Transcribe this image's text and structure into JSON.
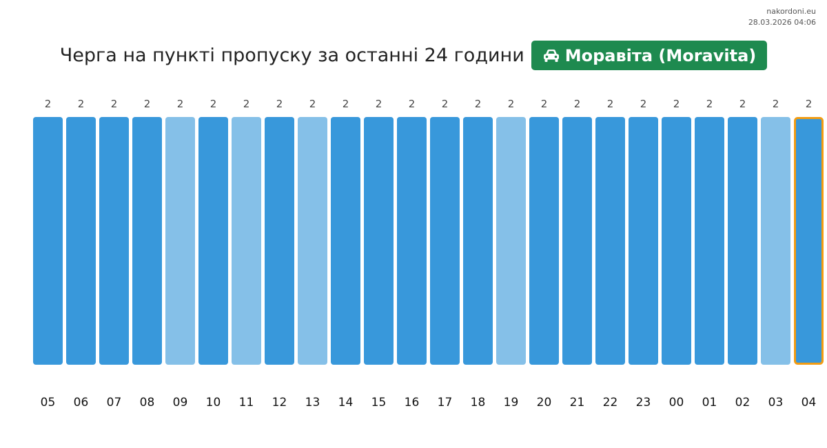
{
  "site": {
    "name": "nakordoni.eu",
    "timestamp": "28.03.2026 04:06"
  },
  "header": {
    "title": "Черга на пункті пропуску за останні 24 години",
    "checkpoint": "Моравіта (Moravita)",
    "icon": "car-icon"
  },
  "colors": {
    "bar": "#3898db",
    "bar_light": "#85c0e8",
    "highlight_border": "#f39c12",
    "badge": "#1e8a4f"
  },
  "chart_data": {
    "type": "bar",
    "categories": [
      "05",
      "06",
      "07",
      "08",
      "09",
      "10",
      "11",
      "12",
      "13",
      "14",
      "15",
      "16",
      "17",
      "18",
      "19",
      "20",
      "21",
      "22",
      "23",
      "00",
      "01",
      "02",
      "03",
      "04"
    ],
    "values": [
      2,
      2,
      2,
      2,
      2,
      2,
      2,
      2,
      2,
      2,
      2,
      2,
      2,
      2,
      2,
      2,
      2,
      2,
      2,
      2,
      2,
      2,
      2,
      2
    ],
    "light": [
      false,
      false,
      false,
      false,
      true,
      false,
      true,
      false,
      true,
      false,
      false,
      false,
      false,
      false,
      true,
      false,
      false,
      false,
      false,
      false,
      false,
      false,
      true,
      false
    ],
    "highlighted": "04",
    "ylim": [
      0,
      2
    ]
  }
}
